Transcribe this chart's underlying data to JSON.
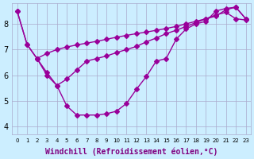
{
  "background_color": "#cceeff",
  "plot_bg_color": "#cceeff",
  "line_color": "#990099",
  "marker": "D",
  "marker_size": 3,
  "xlabel": "Windchill (Refroidissement éolien,°C)",
  "xlabel_fontsize": 7,
  "xticks": [
    0,
    1,
    2,
    3,
    4,
    5,
    6,
    7,
    8,
    9,
    10,
    11,
    12,
    13,
    14,
    15,
    16,
    17,
    18,
    19,
    20,
    21,
    22,
    23
  ],
  "yticks": [
    4,
    5,
    6,
    7,
    8
  ],
  "ylim": [
    3.7,
    8.8
  ],
  "xlim": [
    -0.5,
    23.5
  ],
  "grid_color": "#aaaacc",
  "series1_x": [
    0,
    1,
    2,
    3,
    4,
    5,
    6,
    7,
    8,
    9,
    10,
    11,
    12,
    13,
    14,
    15,
    16,
    17,
    18,
    19,
    20,
    21,
    22,
    23
  ],
  "series1_y": [
    8.5,
    7.2,
    6.65,
    6.0,
    5.6,
    4.8,
    4.45,
    4.45,
    4.45,
    4.5,
    4.6,
    4.9,
    5.45,
    5.95,
    6.55,
    6.65,
    7.4,
    7.8,
    8.0,
    8.1,
    8.5,
    8.6,
    8.65,
    8.2
  ],
  "series2_x": [
    0,
    1,
    2,
    3,
    4,
    5,
    6,
    7,
    8,
    9,
    10,
    11,
    12,
    13,
    14,
    15,
    16,
    17,
    18,
    19,
    20,
    21,
    22,
    23
  ],
  "series2_y": [
    8.5,
    7.2,
    6.65,
    6.85,
    7.0,
    7.1,
    7.18,
    7.25,
    7.32,
    7.4,
    7.48,
    7.55,
    7.62,
    7.68,
    7.75,
    7.82,
    7.9,
    8.0,
    8.1,
    8.2,
    8.3,
    8.55,
    8.65,
    8.2
  ],
  "series3_x": [
    2,
    3,
    4,
    5,
    6,
    7,
    8,
    9,
    10,
    11,
    12,
    13,
    14,
    15,
    16,
    17,
    18,
    19,
    20,
    21,
    22,
    23
  ],
  "series3_y": [
    6.65,
    6.1,
    5.6,
    5.85,
    6.2,
    6.55,
    6.65,
    6.75,
    6.88,
    7.0,
    7.12,
    7.3,
    7.45,
    7.62,
    7.75,
    7.9,
    8.05,
    8.2,
    8.35,
    8.45,
    8.2,
    8.15
  ]
}
